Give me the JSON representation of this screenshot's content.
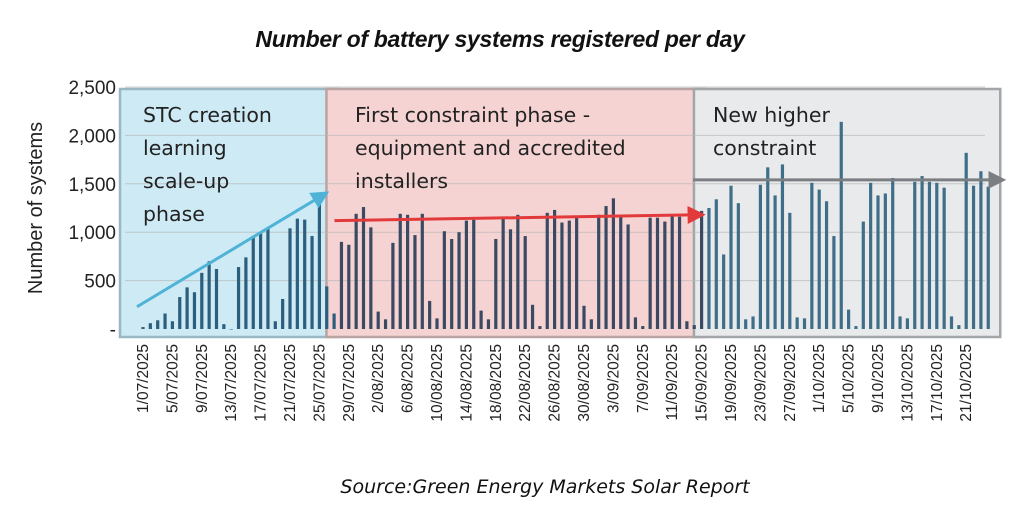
{
  "chart_data": {
    "type": "bar",
    "title": "Number of battery systems registered per day",
    "xlabel": "",
    "ylabel": "Number  of systems",
    "ylim": [
      0,
      2500
    ],
    "yticks": [
      0,
      500,
      1000,
      1500,
      2000,
      2500
    ],
    "ytick_labels": [
      "-",
      "500",
      "1,000",
      "1,500",
      "2,000",
      "2,500"
    ],
    "grid": true,
    "start_date": "1/07/2025",
    "x_tick_labels": [
      "1/07/2025",
      "5/07/2025",
      "9/07/2025",
      "13/07/2025",
      "17/07/2025",
      "21/07/2025",
      "25/07/2025",
      "29/07/2025",
      "2/08/2025",
      "6/08/2025",
      "10/08/2025",
      "14/08/2025",
      "18/08/2025",
      "22/08/2025",
      "26/08/2025",
      "30/08/2025",
      "3/09/2025",
      "7/09/2025",
      "11/09/2025",
      "15/09/2025",
      "19/09/2025",
      "23/09/2025",
      "27/09/2025",
      "1/10/2025",
      "5/10/2025",
      "9/10/2025",
      "13/10/2025",
      "17/10/2025",
      "21/10/2025"
    ],
    "x_tick_every_days": 4,
    "values": [
      20,
      60,
      90,
      160,
      80,
      330,
      430,
      380,
      580,
      700,
      620,
      50,
      0,
      640,
      740,
      950,
      1000,
      1040,
      80,
      310,
      1040,
      1140,
      1130,
      960,
      1400,
      440,
      160,
      900,
      870,
      1190,
      1260,
      1050,
      180,
      100,
      890,
      1190,
      1180,
      970,
      1190,
      290,
      110,
      1010,
      930,
      1000,
      1120,
      1130,
      190,
      100,
      930,
      1140,
      1030,
      1180,
      960,
      250,
      30,
      1200,
      1230,
      1100,
      1120,
      1150,
      240,
      100,
      1180,
      1270,
      1350,
      1160,
      1080,
      120,
      30,
      1150,
      1150,
      1110,
      1180,
      1160,
      80,
      40,
      1220,
      1250,
      1340,
      770,
      1480,
      1300,
      100,
      130,
      1490,
      1670,
      1380,
      1700,
      1200,
      120,
      110,
      1510,
      1440,
      1320,
      960,
      2140,
      200,
      30,
      1110,
      1510,
      1380,
      1400,
      1560,
      130,
      110,
      1520,
      1580,
      1520,
      1510,
      1460,
      130,
      40,
      1820,
      1480,
      1630,
      1470
    ],
    "phases": [
      {
        "label_lines": [
          "STC creation",
          "learning",
          "scale-up",
          "phase"
        ],
        "start_day": 0,
        "end_day": 26,
        "fill": "#cdeaf5",
        "border": "#9ab7c4",
        "bar_color": "#2b5f7d",
        "arrow": {
          "from_value": 230,
          "to_value": 1390,
          "color": "#4eb3d6"
        }
      },
      {
        "label_lines": [
          "First constraint phase -",
          "equipment and accredited",
          "installers"
        ],
        "start_day": 27,
        "end_day": 76,
        "fill": "#f6d3d3",
        "border": "#b9a3a3",
        "bar_color": "#3a4a63",
        "arrow": {
          "from_value": 1120,
          "to_value": 1180,
          "color": "#e23a3a"
        }
      },
      {
        "label_lines": [
          "New higher",
          "constraint"
        ],
        "start_day": 77,
        "end_day": 115,
        "fill": "#e8eaec",
        "border": "#a3a6a9",
        "bar_color": "#3f6f88",
        "arrow": {
          "from_value": 1540,
          "to_value": 1540,
          "color": "#7b7e82"
        }
      }
    ],
    "source": "Source:Green Energy Markets Solar Report"
  }
}
